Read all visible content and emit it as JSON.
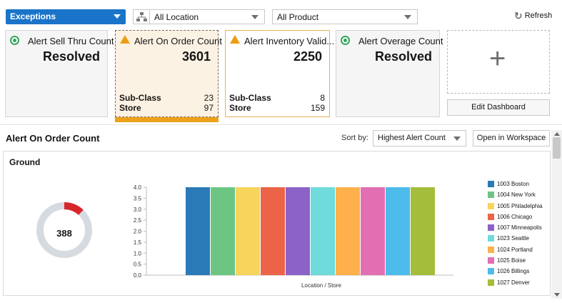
{
  "header": {
    "exceptions_label": "Exceptions",
    "location_label": "All Location",
    "product_label": "All Product",
    "refresh_label": "Refresh"
  },
  "tiles": [
    {
      "title": "Alert Sell Thru Count",
      "value": "Resolved",
      "status": "ok",
      "rows": []
    },
    {
      "title": "Alert On Order Count",
      "value": "3601",
      "status": "warn",
      "rows": [
        {
          "label": "Sub-Class",
          "value": "23"
        },
        {
          "label": "Store",
          "value": "97"
        }
      ]
    },
    {
      "title": "Alert Inventory Valid...",
      "value": "2250",
      "status": "warn",
      "rows": [
        {
          "label": "Sub-Class",
          "value": "8"
        },
        {
          "label": "Store",
          "value": "159"
        }
      ]
    },
    {
      "title": "Alert Overage Count",
      "value": "Resolved",
      "status": "ok",
      "rows": []
    }
  ],
  "edit_dashboard_label": "Edit Dashboard",
  "detail": {
    "title": "Alert On Order Count",
    "sort_label": "Sort by:",
    "sort_value": "Highest Alert Count",
    "open_workspace_label": "Open in Workspace",
    "panel_title": "Ground",
    "donut_value": "388",
    "donut_fraction": 0.12
  },
  "colors": {
    "accent": "#1a74c9",
    "warn": "#eba21a",
    "ok": "#2fa65a",
    "donut_highlight": "#d7262b",
    "donut_track": "#d5dbe0"
  },
  "chart_data": {
    "type": "bar",
    "xlabel": "Location / Store",
    "ylabel": "",
    "ylim": [
      0,
      4.0
    ],
    "yticks": [
      "0.0",
      "0.5",
      "1.0",
      "1.5",
      "2.0",
      "2.5",
      "3.0",
      "3.5",
      "4.0"
    ],
    "categories": [
      "1003 Boston",
      "1004 New York",
      "1005 Philadelphia",
      "1006 Chicago",
      "1007 Minneapolis",
      "1023 Seattle",
      "1024 Portland",
      "1025 Boise",
      "1026 Billings",
      "1027 Denver"
    ],
    "values": [
      4,
      4,
      4,
      4,
      4,
      4,
      4,
      4,
      4,
      4
    ],
    "colors": [
      "#2a7ab8",
      "#6dc584",
      "#f7d45c",
      "#ec6447",
      "#8c62c9",
      "#6fdbdb",
      "#fdb04b",
      "#e26fb1",
      "#4dbbea",
      "#a4bd3a"
    ],
    "legend_position": "right",
    "grid": false
  }
}
